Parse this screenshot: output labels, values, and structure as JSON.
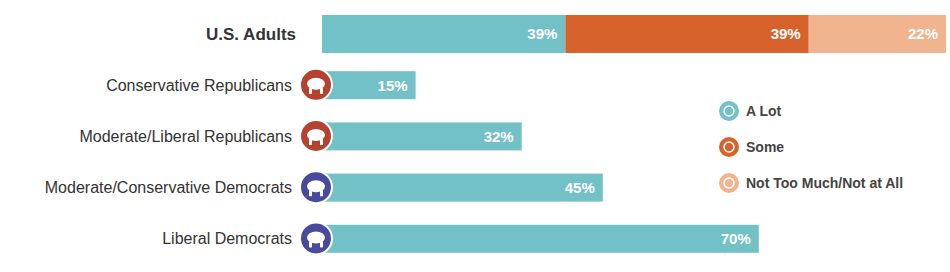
{
  "chart_data": {
    "type": "bar",
    "orientation": "horizontal",
    "stacked": true,
    "data_labels": true,
    "tick_labels": false,
    "legend": "right",
    "xlim": [
      0,
      100
    ],
    "categories": [
      "U.S. Adults",
      "Conservative Republicans",
      "Moderate/Liberal Republicans",
      "Moderate/Conservative Democrats",
      "Liberal Democrats"
    ],
    "series": [
      {
        "name": "A Lot",
        "color": "#72c1c6",
        "values": [
          39,
          15,
          32,
          45,
          70
        ],
        "value_labels": [
          "39%",
          "15%",
          "32%",
          "45%",
          "70%"
        ]
      },
      {
        "name": "Some",
        "color": "#d8622b",
        "values": [
          39,
          null,
          null,
          null,
          null
        ],
        "value_labels": [
          "39%",
          null,
          null,
          null,
          null
        ]
      },
      {
        "name": "Not Too Much/Not at All",
        "color": "#f0b48e",
        "values": [
          22,
          null,
          null,
          null,
          null
        ],
        "value_labels": [
          "22%",
          null,
          null,
          null,
          null
        ]
      }
    ]
  }
}
